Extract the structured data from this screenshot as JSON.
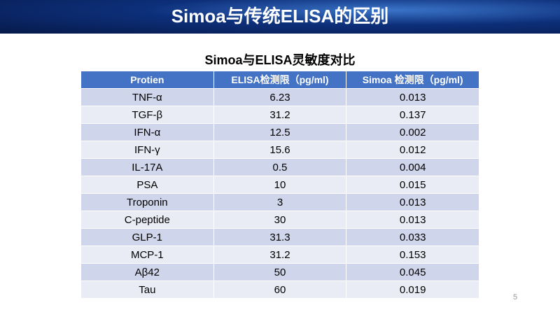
{
  "header": {
    "title": "Simoa与传统ELISA的区别"
  },
  "table": {
    "title": "Simoa与ELISA灵敏度对比",
    "columns": [
      "Protien",
      "ELISA检测限（pg/ml)",
      "Simoa 检测限（pg/ml)"
    ],
    "rows": [
      [
        "TNF-α",
        "6.23",
        "0.013"
      ],
      [
        "TGF-β",
        "31.2",
        "0.137"
      ],
      [
        "IFN-α",
        "12.5",
        "0.002"
      ],
      [
        "IFN-γ",
        "15.6",
        "0.012"
      ],
      [
        "IL-17A",
        "0.5",
        "0.004"
      ],
      [
        "PSA",
        "10",
        "0.015"
      ],
      [
        "Troponin",
        "3",
        "0.013"
      ],
      [
        "C-peptide",
        "30",
        "0.013"
      ],
      [
        "GLP-1",
        "31.3",
        "0.033"
      ],
      [
        "MCP-1",
        "31.2",
        "0.153"
      ],
      [
        "Aβ42",
        "50",
        "0.045"
      ],
      [
        "Tau",
        "60",
        "0.019"
      ]
    ]
  },
  "page_number": "5"
}
